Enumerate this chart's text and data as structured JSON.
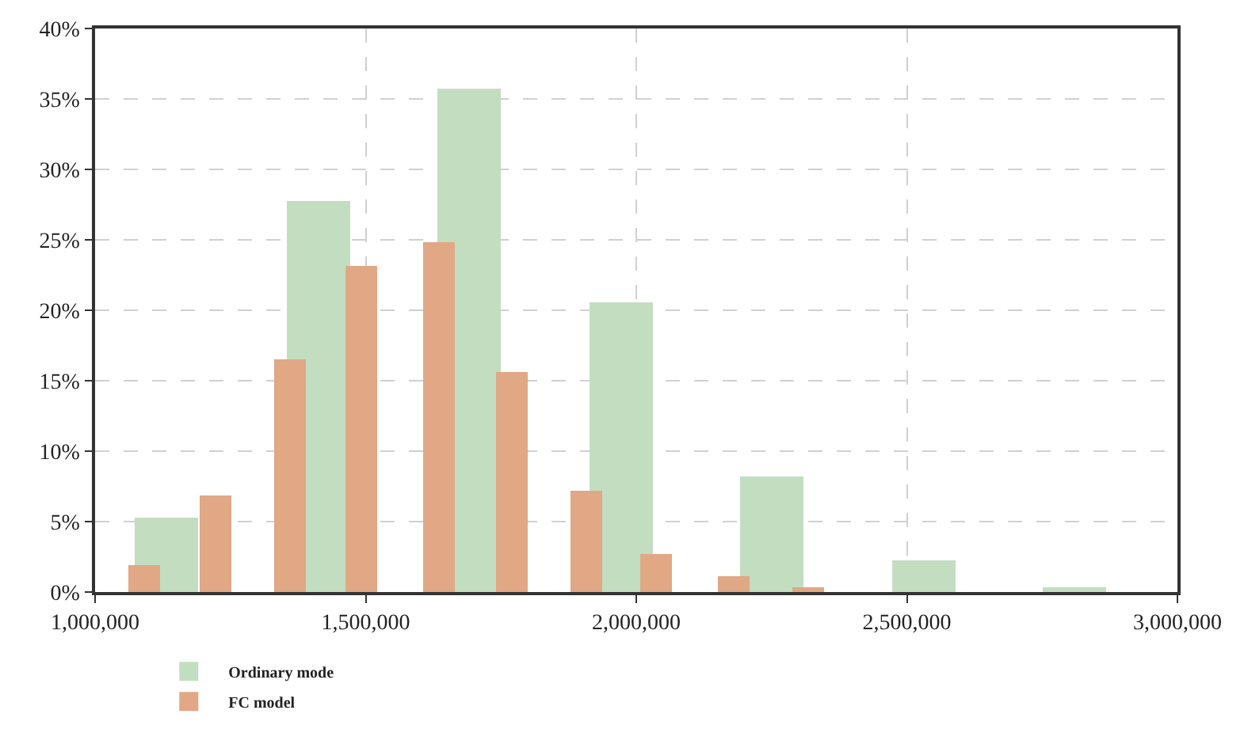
{
  "chart_data": {
    "type": "bar",
    "series": [
      {
        "name": "Ordinary mode",
        "color": "#c3ddc1",
        "x": [
          1132000,
          1413000,
          1691000,
          1972000,
          2250000,
          2531000,
          2810000
        ],
        "values": [
          5.3,
          27.8,
          35.7,
          20.6,
          8.2,
          2.3,
          0.3
        ]
      },
      {
        "name": "FC model",
        "color": "#e0a885",
        "x": [
          1091000,
          1222000,
          1360000,
          1492000,
          1635000,
          1770000,
          1908000,
          2037000,
          2180000,
          2318000
        ],
        "values": [
          1.9,
          6.9,
          16.5,
          23.1,
          24.8,
          15.6,
          7.2,
          2.7,
          1.1,
          0.3
        ]
      }
    ],
    "xlim": [
      1000000,
      3000000
    ],
    "xticks": [
      {
        "value": 1000000,
        "label": "1,000,000"
      },
      {
        "value": 1500000,
        "label": "1,500,000"
      },
      {
        "value": 2000000,
        "label": "2,000,000"
      },
      {
        "value": 2500000,
        "label": "2,500,000"
      },
      {
        "value": 3000000,
        "label": "3,000,000"
      }
    ],
    "ylim": [
      0,
      40
    ],
    "yticks": [
      {
        "value": 0,
        "label": "0%"
      },
      {
        "value": 5,
        "label": "5%"
      },
      {
        "value": 10,
        "label": "10%"
      },
      {
        "value": 15,
        "label": "15%"
      },
      {
        "value": 20,
        "label": "20%"
      },
      {
        "value": 25,
        "label": "25%"
      },
      {
        "value": 30,
        "label": "30%"
      },
      {
        "value": 35,
        "label": "35%"
      },
      {
        "value": 40,
        "label": "40%"
      }
    ],
    "grid": true,
    "legend": "bottom"
  }
}
